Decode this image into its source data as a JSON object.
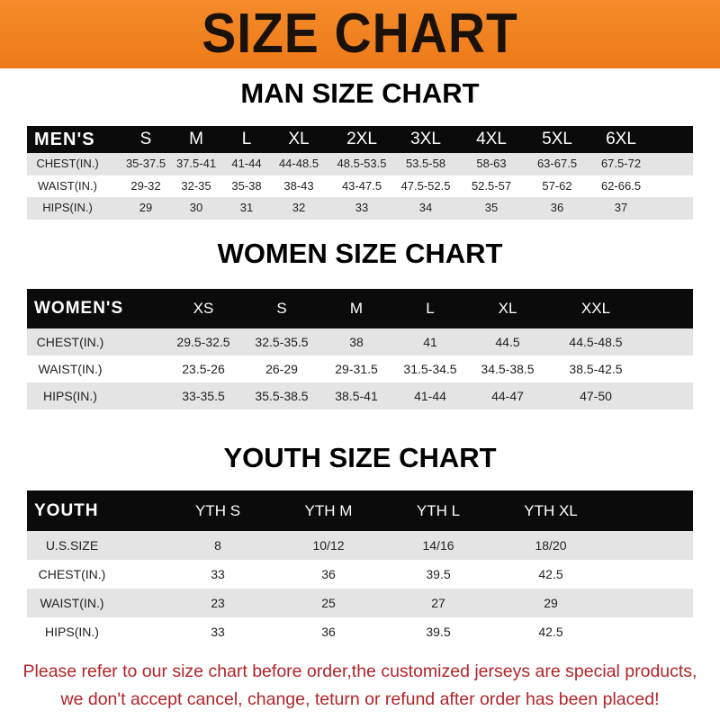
{
  "banner_title": "SIZE CHART",
  "men": {
    "title": "MAN SIZE CHART",
    "header": [
      "MEN'S",
      "S",
      "M",
      "L",
      "XL",
      "2XL",
      "3XL",
      "4XL",
      "5XL",
      "6XL"
    ],
    "rows": [
      [
        "CHEST(IN.)",
        "35-37.5",
        "37.5-41",
        "41-44",
        "44-48.5",
        "48.5-53.5",
        "53.5-58",
        "58-63",
        "63-67.5",
        "67.5-72"
      ],
      [
        "WAIST(IN.)",
        "29-32",
        "32-35",
        "35-38",
        "38-43",
        "43-47.5",
        "47.5-52.5",
        "52.5-57",
        "57-62",
        "62-66.5"
      ],
      [
        "HIPS(IN.)",
        "29",
        "30",
        "31",
        "32",
        "33",
        "34",
        "35",
        "36",
        "37"
      ]
    ]
  },
  "women": {
    "title": "WOMEN SIZE CHART",
    "header": [
      "WOMEN'S",
      "XS",
      "S",
      "M",
      "L",
      "XL",
      "XXL"
    ],
    "rows": [
      [
        "CHEST(IN.)",
        "29.5-32.5",
        "32.5-35.5",
        "38",
        "41",
        "44.5",
        "44.5-48.5"
      ],
      [
        "WAIST(IN.)",
        "23.5-26",
        "26-29",
        "29-31.5",
        "31.5-34.5",
        "34.5-38.5",
        "38.5-42.5"
      ],
      [
        "HIPS(IN.)",
        "33-35.5",
        "35.5-38.5",
        "38.5-41",
        "41-44",
        "44-47",
        "47-50"
      ]
    ]
  },
  "youth": {
    "title": "YOUTH SIZE CHART",
    "header": [
      "YOUTH",
      "YTH S",
      "YTH M",
      "YTH L",
      "YTH XL"
    ],
    "rows": [
      [
        "U.S.SIZE",
        "8",
        "10/12",
        "14/16",
        "18/20"
      ],
      [
        "CHEST(IN.)",
        "33",
        "36",
        "39.5",
        "42.5"
      ],
      [
        "WAIST(IN.)",
        "23",
        "25",
        "27",
        "29"
      ],
      [
        "HIPS(IN.)",
        "33",
        "36",
        "39.5",
        "42.5"
      ]
    ]
  },
  "footer": {
    "line1": "Please refer to our size chart before order,the customized jerseys are special products,",
    "line2": "we don't accept cancel, change, teturn or refund after order has been placed!"
  },
  "colors": {
    "banner": "#f07f1f",
    "header_row": "#0b0b0b",
    "stripe": "#e4e4e4",
    "footer_text": "#b3242a"
  }
}
